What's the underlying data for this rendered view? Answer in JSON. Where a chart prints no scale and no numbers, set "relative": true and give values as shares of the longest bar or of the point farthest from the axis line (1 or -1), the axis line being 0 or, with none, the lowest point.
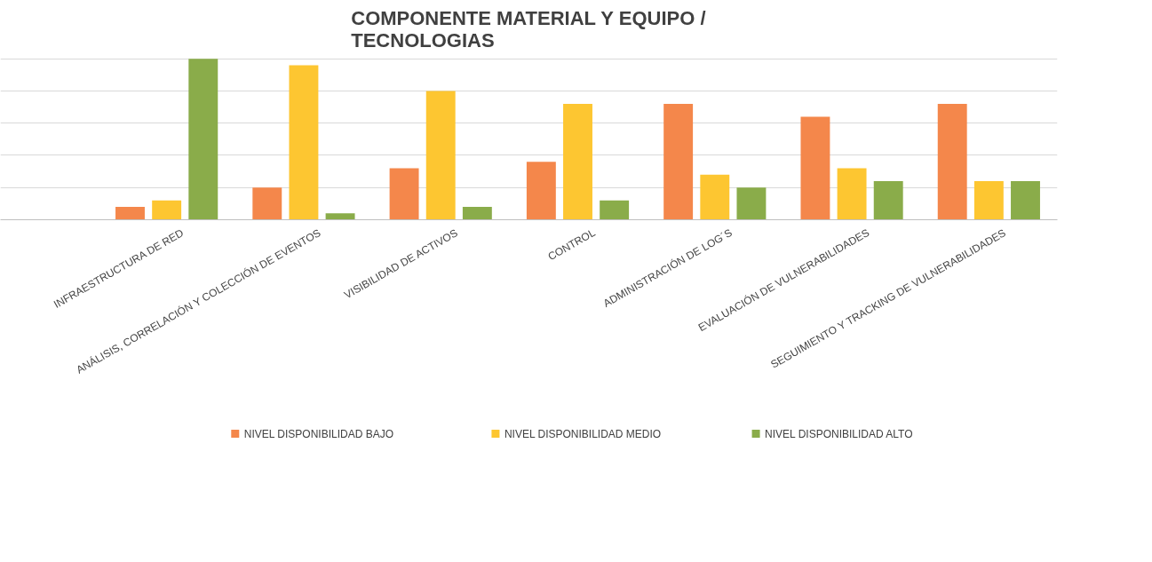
{
  "chart_data": {
    "type": "bar",
    "title": "COMPONENTE MATERIAL Y EQUIPO /\nTECNOLOGIAS",
    "relative": true,
    "grid": "y",
    "legend": "bottom",
    "categories": [
      "INFRAESTRUCTURA DE RED",
      "ANÁLISIS, CORRELACIÓN Y COLECCIÓN DE EVENTOS",
      "VISIBILIDAD DE ACTIVOS",
      "CONTROL",
      "ADMINISTRACIÓN DE LOG´S",
      "EVALUACIÓN DE VULNERABILIDADES",
      "SEGUIMIENTO Y TRACKING DE VULNERABILIDADES"
    ],
    "series": [
      {
        "name": "NIVEL DISPONIBILIDAD BAJO",
        "color": "#f4874b",
        "values": [
          0.08,
          0.2,
          0.32,
          0.36,
          0.72,
          0.64,
          0.72
        ]
      },
      {
        "name": "NIVEL DISPONIBILIDAD MEDIO",
        "color": "#fdc631",
        "values": [
          0.12,
          0.96,
          0.8,
          0.72,
          0.28,
          0.32,
          0.24
        ]
      },
      {
        "name": "NIVEL DISPONIBILIDAD ALTO",
        "color": "#8aac4a",
        "values": [
          1,
          0.04,
          0.08,
          0.12,
          0.2,
          0.24,
          0.24
        ]
      }
    ]
  }
}
